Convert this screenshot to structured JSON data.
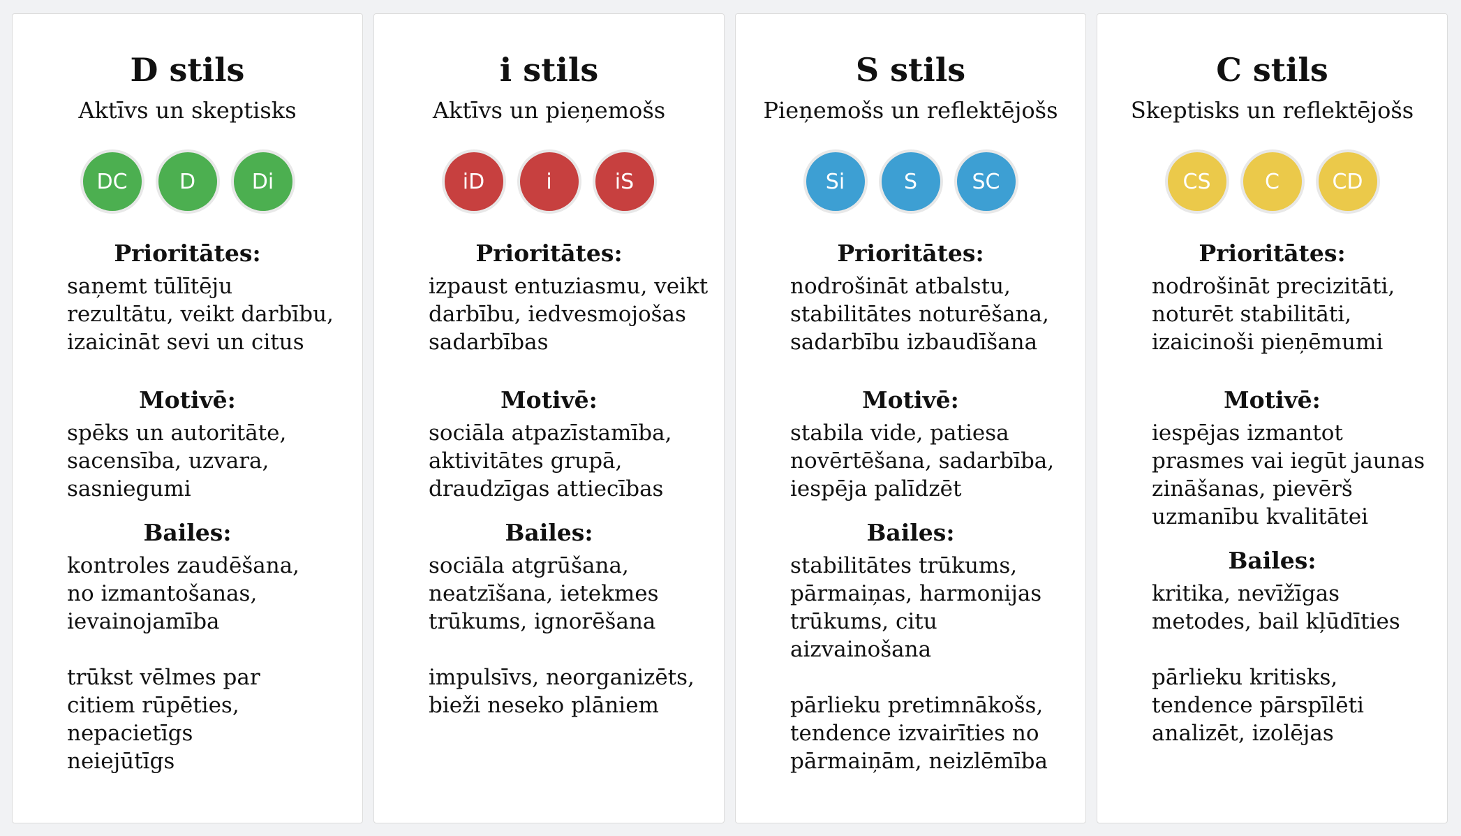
{
  "cards": [
    {
      "title": "D stils",
      "subtitle": "Aktīvs un skeptisks",
      "badges": [
        "DC",
        "D",
        "Di"
      ],
      "color": "#4caf50",
      "priorities_label": "Prioritātes:",
      "priorities": [
        "saņemt tūlītēju",
        "rezultātu, veikt darbību,",
        "izaicināt sevi un citus"
      ],
      "motive_label": "Motivē:",
      "motive": [
        "spēks un autoritāte,",
        "sacensība, uzvara,",
        "sasniegumi"
      ],
      "fears_label": "Bailes:",
      "fears": [
        "kontroles zaudēšana,",
        "no izmantošanas,",
        "ievainojamība"
      ],
      "limits": [
        "trūkst vēlmes par",
        "citiem rūpēties,",
        "nepacietīgs",
        "neiejūtīgs"
      ]
    },
    {
      "title": "i stils",
      "subtitle": "Aktīvs un pieņemošs",
      "badges": [
        "iD",
        "i",
        "iS"
      ],
      "color": "#c7403f",
      "priorities_label": "Prioritātes:",
      "priorities": [
        "izpaust entuziasmu, veikt",
        "darbību, iedvesmojošas",
        "sadarbības"
      ],
      "motive_label": "Motivē:",
      "motive": [
        "sociāla atpazīstamība,",
        "aktivitātes grupā,",
        "draudzīgas attiecības"
      ],
      "fears_label": "Bailes:",
      "fears": [
        "sociāla atgrūšana,",
        "neatzīšana, ietekmes",
        "trūkums, ignorēšana"
      ],
      "limits": [
        "impulsīvs, neorganizēts,",
        "bieži neseko plāniem"
      ]
    },
    {
      "title": "S stils",
      "subtitle": "Pieņemošs un reflektējošs",
      "badges": [
        "Si",
        "S",
        "SC"
      ],
      "color": "#3d9fd3",
      "priorities_label": "Prioritātes:",
      "priorities": [
        "nodrošināt atbalstu,",
        "stabilitātes noturēšana,",
        "sadarbību izbaudīšana"
      ],
      "motive_label": "Motivē:",
      "motive": [
        "stabila vide, patiesa",
        "novērtēšana, sadarbība,",
        "iespēja palīdzēt"
      ],
      "fears_label": "Bailes:",
      "fears": [
        "stabilitātes trūkums,",
        "pārmaiņas, harmonijas",
        "trūkums, citu",
        "aizvainošana"
      ],
      "limits": [
        "pārlieku pretimnākošs,",
        "tendence izvairīties no",
        "pārmaiņām, neizlēmība"
      ]
    },
    {
      "title": "C stils",
      "subtitle": "Skeptisks un reflektējošs",
      "badges": [
        "CS",
        "C",
        "CD"
      ],
      "color": "#ebc94a",
      "priorities_label": "Prioritātes:",
      "priorities": [
        "nodrošināt precizitāti,",
        "noturēt stabilitāti,",
        "izaicinoši pieņēmumi"
      ],
      "motive_label": "Motivē:",
      "motive": [
        "iespējas izmantot",
        "prasmes vai iegūt jaunas",
        "zināšanas, pievērš",
        "uzmanību kvalitātei"
      ],
      "fears_label": "Bailes:",
      "fears": [
        "kritika, nevīžīgas",
        "metodes, bail kļūdīties"
      ],
      "limits": [
        "pārlieku kritisks,",
        "tendence pārspīlēti",
        "analizēt, izolējas"
      ]
    }
  ]
}
